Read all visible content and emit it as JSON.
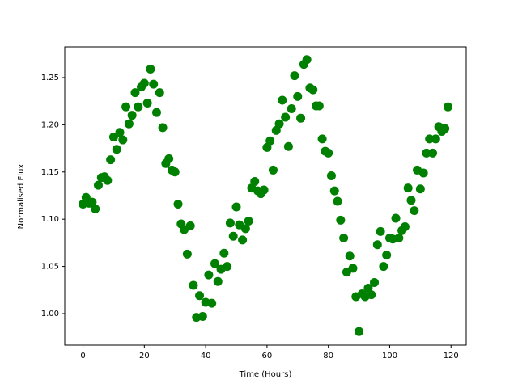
{
  "chart_data": {
    "type": "scatter",
    "xlabel": "Time (Hours)",
    "ylabel": "Normalised Flux",
    "color": "#008000",
    "x": [
      0,
      1,
      2,
      3,
      4,
      5,
      6,
      7,
      8,
      9,
      10,
      11,
      12,
      13,
      14,
      15,
      16,
      17,
      18,
      19,
      20,
      21,
      22,
      23,
      24,
      25,
      26,
      27,
      28,
      29,
      30,
      31,
      32,
      33,
      34,
      35,
      36,
      37,
      38,
      39,
      40,
      41,
      42,
      43,
      44,
      45,
      46,
      47,
      48,
      49,
      50,
      51,
      52,
      53,
      54,
      55,
      56,
      57,
      58,
      59,
      60,
      61,
      62,
      63,
      64,
      65,
      66,
      67,
      68,
      69,
      70,
      71,
      72,
      73,
      74,
      75,
      76,
      77,
      78,
      79,
      80,
      81,
      82,
      83,
      84,
      85,
      86,
      87,
      88,
      89,
      90,
      91,
      92,
      93,
      94,
      95,
      96,
      97,
      98,
      99,
      100,
      101,
      102,
      103,
      104,
      105,
      106,
      107,
      108,
      109,
      110,
      111,
      112,
      113,
      114,
      115,
      116,
      117,
      118,
      119
    ],
    "y": [
      1.116,
      1.123,
      1.117,
      1.118,
      1.111,
      1.136,
      1.144,
      1.145,
      1.141,
      1.163,
      1.187,
      1.174,
      1.192,
      1.184,
      1.219,
      1.201,
      1.21,
      1.234,
      1.219,
      1.24,
      1.244,
      1.223,
      1.259,
      1.243,
      1.213,
      1.234,
      1.197,
      1.159,
      1.164,
      1.152,
      1.15,
      1.116,
      1.095,
      1.089,
      1.063,
      1.093,
      1.03,
      0.996,
      1.019,
      0.997,
      1.012,
      1.041,
      1.011,
      1.053,
      1.034,
      1.047,
      1.064,
      1.05,
      1.096,
      1.082,
      1.113,
      1.094,
      1.078,
      1.09,
      1.098,
      1.133,
      1.14,
      1.13,
      1.127,
      1.131,
      1.176,
      1.183,
      1.152,
      1.194,
      1.201,
      1.226,
      1.208,
      1.177,
      1.217,
      1.252,
      1.23,
      1.207,
      1.264,
      1.269,
      1.239,
      1.237,
      1.22,
      1.22,
      1.185,
      1.172,
      1.17,
      1.146,
      1.13,
      1.119,
      1.099,
      1.08,
      1.044,
      1.061,
      1.048,
      1.018,
      0.981,
      1.021,
      1.018,
      1.027,
      1.02,
      1.033,
      1.073,
      1.087,
      1.05,
      1.062,
      1.08,
      1.079,
      1.101,
      1.08,
      1.088,
      1.092,
      1.133,
      1.12,
      1.109,
      1.152,
      1.132,
      1.149,
      1.17,
      1.185,
      1.17,
      1.185,
      1.198,
      1.193,
      1.196,
      1.219
    ],
    "xlim": [
      -5.95,
      124.95
    ],
    "ylim": [
      0.9666,
      1.2825
    ],
    "xticks": [
      0,
      20,
      40,
      60,
      80,
      100,
      120
    ],
    "yticks": [
      {
        "value": 1,
        "label": "1.00"
      },
      1.05,
      {
        "value": 1.1,
        "label": "1.10"
      },
      1.15,
      {
        "value": 1.2,
        "label": "1.20"
      },
      1.25
    ]
  }
}
